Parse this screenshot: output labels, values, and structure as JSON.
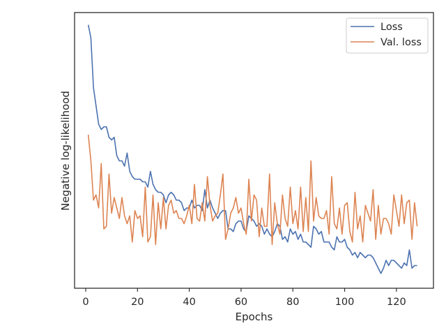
{
  "chart_data": {
    "type": "line",
    "title": "",
    "xlabel": "Epochs",
    "ylabel": "Negative log-likelihood",
    "xlim": [
      -4.3,
      134.3
    ],
    "ylim": [
      0,
      1
    ],
    "x_ticks": [
      0,
      20,
      40,
      60,
      80,
      100,
      120
    ],
    "y_ticks_shown": false,
    "grid": false,
    "legend_position": "top-right",
    "series": [
      {
        "name": "Loss",
        "color": "#4c72b0",
        "x": [
          1,
          2,
          3,
          4,
          5,
          6,
          7,
          8,
          9,
          10,
          11,
          12,
          13,
          14,
          15,
          16,
          17,
          18,
          19,
          20,
          21,
          22,
          23,
          24,
          25,
          26,
          27,
          28,
          29,
          30,
          31,
          32,
          33,
          34,
          35,
          36,
          37,
          38,
          39,
          40,
          41,
          42,
          43,
          44,
          45,
          46,
          47,
          48,
          49,
          50,
          51,
          52,
          53,
          54,
          55,
          56,
          57,
          58,
          59,
          60,
          61,
          62,
          63,
          64,
          65,
          66,
          67,
          68,
          69,
          70,
          71,
          72,
          73,
          74,
          75,
          76,
          77,
          78,
          79,
          80,
          81,
          82,
          83,
          84,
          85,
          86,
          87,
          88,
          89,
          90,
          91,
          92,
          93,
          94,
          95,
          96,
          97,
          98,
          99,
          100,
          101,
          102,
          103,
          104,
          105,
          106,
          107,
          108,
          109,
          110,
          111,
          112,
          113,
          114,
          115,
          116,
          117,
          118,
          119,
          120,
          121,
          122,
          123,
          124,
          125,
          126,
          127,
          128
        ],
        "values": [
          0.98,
          0.93,
          0.74,
          0.67,
          0.6,
          0.58,
          0.59,
          0.59,
          0.55,
          0.54,
          0.55,
          0.48,
          0.46,
          0.46,
          0.44,
          0.49,
          0.42,
          0.4,
          0.39,
          0.39,
          0.39,
          0.38,
          0.38,
          0.36,
          0.42,
          0.37,
          0.35,
          0.34,
          0.34,
          0.33,
          0.3,
          0.33,
          0.34,
          0.33,
          0.31,
          0.31,
          0.3,
          0.27,
          0.28,
          0.28,
          0.31,
          0.28,
          0.29,
          0.29,
          0.27,
          0.35,
          0.28,
          0.31,
          0.28,
          0.26,
          0.24,
          0.26,
          0.27,
          0.27,
          0.2,
          0.2,
          0.19,
          0.22,
          0.23,
          0.23,
          0.2,
          0.19,
          0.25,
          0.24,
          0.23,
          0.21,
          0.22,
          0.21,
          0.18,
          0.2,
          0.18,
          0.17,
          0.19,
          0.22,
          0.21,
          0.16,
          0.17,
          0.15,
          0.2,
          0.18,
          0.19,
          0.16,
          0.18,
          0.15,
          0.15,
          0.14,
          0.13,
          0.21,
          0.2,
          0.18,
          0.19,
          0.15,
          0.15,
          0.15,
          0.13,
          0.12,
          0.17,
          0.15,
          0.15,
          0.16,
          0.13,
          0.12,
          0.1,
          0.11,
          0.09,
          0.11,
          0.1,
          0.09,
          0.1,
          0.1,
          0.09,
          0.07,
          0.05,
          0.03,
          0.05,
          0.08,
          0.06,
          0.08,
          0.08,
          0.07,
          0.06,
          0.05,
          0.07,
          0.06,
          0.12,
          0.05,
          0.06,
          0.06
        ]
      },
      {
        "name": "Val. loss",
        "color": "#dd8452",
        "x": [
          1,
          2,
          3,
          4,
          5,
          6,
          7,
          8,
          9,
          10,
          11,
          12,
          13,
          14,
          15,
          16,
          17,
          18,
          19,
          20,
          21,
          22,
          23,
          24,
          25,
          26,
          27,
          28,
          29,
          30,
          31,
          32,
          33,
          34,
          35,
          36,
          37,
          38,
          39,
          40,
          41,
          42,
          43,
          44,
          45,
          46,
          47,
          48,
          49,
          50,
          51,
          52,
          53,
          54,
          55,
          56,
          57,
          58,
          59,
          60,
          61,
          62,
          63,
          64,
          65,
          66,
          67,
          68,
          69,
          70,
          71,
          72,
          73,
          74,
          75,
          76,
          77,
          78,
          79,
          80,
          81,
          82,
          83,
          84,
          85,
          86,
          87,
          88,
          89,
          90,
          91,
          92,
          93,
          94,
          95,
          96,
          97,
          98,
          99,
          100,
          101,
          102,
          103,
          104,
          105,
          106,
          107,
          108,
          109,
          110,
          111,
          112,
          113,
          114,
          115,
          116,
          117,
          118,
          119,
          120,
          121,
          122,
          123,
          124,
          125,
          126,
          127,
          128
        ],
        "values": [
          0.56,
          0.46,
          0.31,
          0.33,
          0.28,
          0.45,
          0.2,
          0.21,
          0.41,
          0.26,
          0.32,
          0.28,
          0.24,
          0.32,
          0.25,
          0.22,
          0.25,
          0.15,
          0.27,
          0.24,
          0.25,
          0.17,
          0.36,
          0.15,
          0.17,
          0.33,
          0.14,
          0.3,
          0.2,
          0.32,
          0.2,
          0.29,
          0.31,
          0.26,
          0.27,
          0.24,
          0.24,
          0.22,
          0.25,
          0.29,
          0.22,
          0.37,
          0.24,
          0.23,
          0.3,
          0.23,
          0.4,
          0.29,
          0.23,
          0.25,
          0.26,
          0.33,
          0.41,
          0.16,
          0.2,
          0.26,
          0.28,
          0.32,
          0.26,
          0.28,
          0.22,
          0.18,
          0.39,
          0.23,
          0.33,
          0.31,
          0.17,
          0.28,
          0.21,
          0.21,
          0.41,
          0.14,
          0.3,
          0.22,
          0.18,
          0.33,
          0.24,
          0.21,
          0.36,
          0.22,
          0.27,
          0.2,
          0.36,
          0.19,
          0.32,
          0.19,
          0.46,
          0.23,
          0.32,
          0.25,
          0.24,
          0.24,
          0.27,
          0.18,
          0.4,
          0.22,
          0.2,
          0.28,
          0.18,
          0.29,
          0.3,
          0.19,
          0.15,
          0.34,
          0.2,
          0.25,
          0.15,
          0.29,
          0.26,
          0.23,
          0.35,
          0.16,
          0.29,
          0.18,
          0.24,
          0.24,
          0.22,
          0.18,
          0.33,
          0.27,
          0.21,
          0.33,
          0.22,
          0.3,
          0.31,
          0.16,
          0.3,
          0.21
        ]
      }
    ]
  }
}
